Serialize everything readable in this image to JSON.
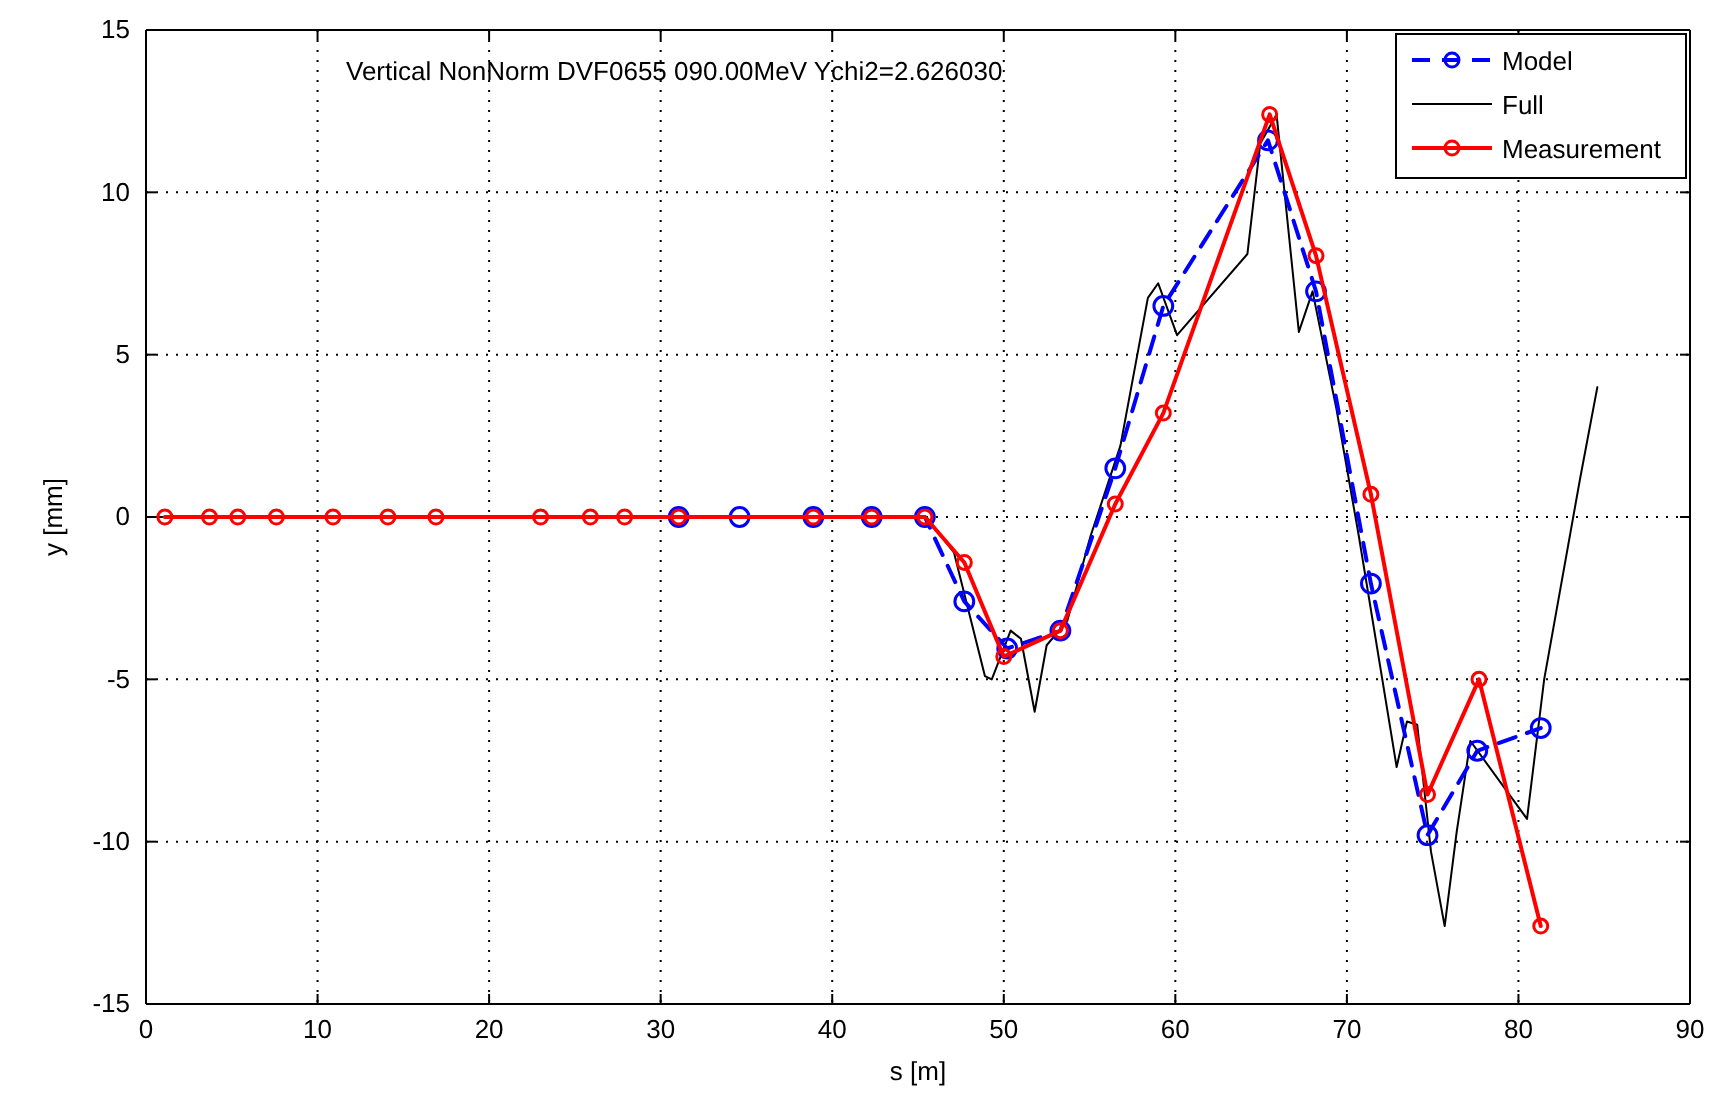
{
  "chart_data": {
    "type": "line",
    "xlabel": "s [m]",
    "ylabel": "y [mm]",
    "annotations": [
      "Vertical NonNorm  DVF0655 090.00MeV Ychi2=2.626030"
    ],
    "xlim": [
      0,
      90
    ],
    "ylim": [
      -15,
      15
    ],
    "xticks": [
      0,
      10,
      20,
      30,
      40,
      50,
      60,
      70,
      80,
      90
    ],
    "yticks": [
      -15,
      -10,
      -5,
      0,
      5,
      10,
      15
    ],
    "grid": true,
    "legend": "top right",
    "series": [
      {
        "name": "Full",
        "color": "#000000",
        "marker": "none",
        "line_style": "solid",
        "x": [
          0,
          45.5,
          47.1,
          48.9,
          49.3,
          50.4,
          51.0,
          51.8,
          52.5,
          53.7,
          55.05,
          56.8,
          58.4,
          59.0,
          60.1,
          64.2,
          64.95,
          65.9,
          67.2,
          68.0,
          69.4,
          70.7,
          72.9,
          73.5,
          74.1,
          74.9,
          75.7,
          76.4,
          77.2,
          80.5,
          81.5,
          83.6,
          84.6
        ],
        "values": [
          0,
          0,
          -1.1,
          -4.9,
          -5.0,
          -3.5,
          -3.75,
          -6.0,
          -3.95,
          -3.2,
          -0.6,
          2.2,
          6.75,
          7.2,
          5.6,
          8.1,
          11.5,
          12.4,
          5.7,
          6.95,
          3.3,
          -0.6,
          -7.7,
          -6.3,
          -6.4,
          -10.3,
          -12.6,
          -9.7,
          -6.9,
          -9.3,
          -5.0,
          1.2,
          4.0
        ]
      },
      {
        "name": "Model",
        "color": "#0000ff",
        "marker": "circle",
        "line_style": "dashed",
        "x": [
          31.05,
          34.6,
          38.9,
          42.3,
          45.4,
          47.7,
          50.2,
          53.3,
          56.5,
          59.3,
          65.4,
          68.2,
          71.4,
          74.7,
          77.6,
          81.3
        ],
        "values": [
          0,
          0,
          0,
          0,
          0,
          -2.6,
          -4.05,
          -3.5,
          1.5,
          6.5,
          11.6,
          6.95,
          -2.05,
          -9.8,
          -7.2,
          -6.5
        ]
      },
      {
        "name": "Measurement",
        "color": "#ff0000",
        "marker": "circle",
        "line_style": "solid",
        "x": [
          1.1,
          3.7,
          5.35,
          7.6,
          10.9,
          14.1,
          16.9,
          23.0,
          25.9,
          27.9,
          31.05,
          38.9,
          42.3,
          45.4,
          47.7,
          50.0,
          53.3,
          56.5,
          59.3,
          65.5,
          68.2,
          71.4,
          74.7,
          77.7,
          81.3
        ],
        "values": [
          0,
          0,
          0,
          0,
          0,
          0,
          0,
          0,
          0,
          0,
          0,
          0,
          0,
          0,
          -1.4,
          -4.3,
          -3.5,
          0.4,
          3.2,
          12.4,
          8.05,
          0.7,
          -8.55,
          -5.0,
          -12.6
        ]
      }
    ]
  }
}
